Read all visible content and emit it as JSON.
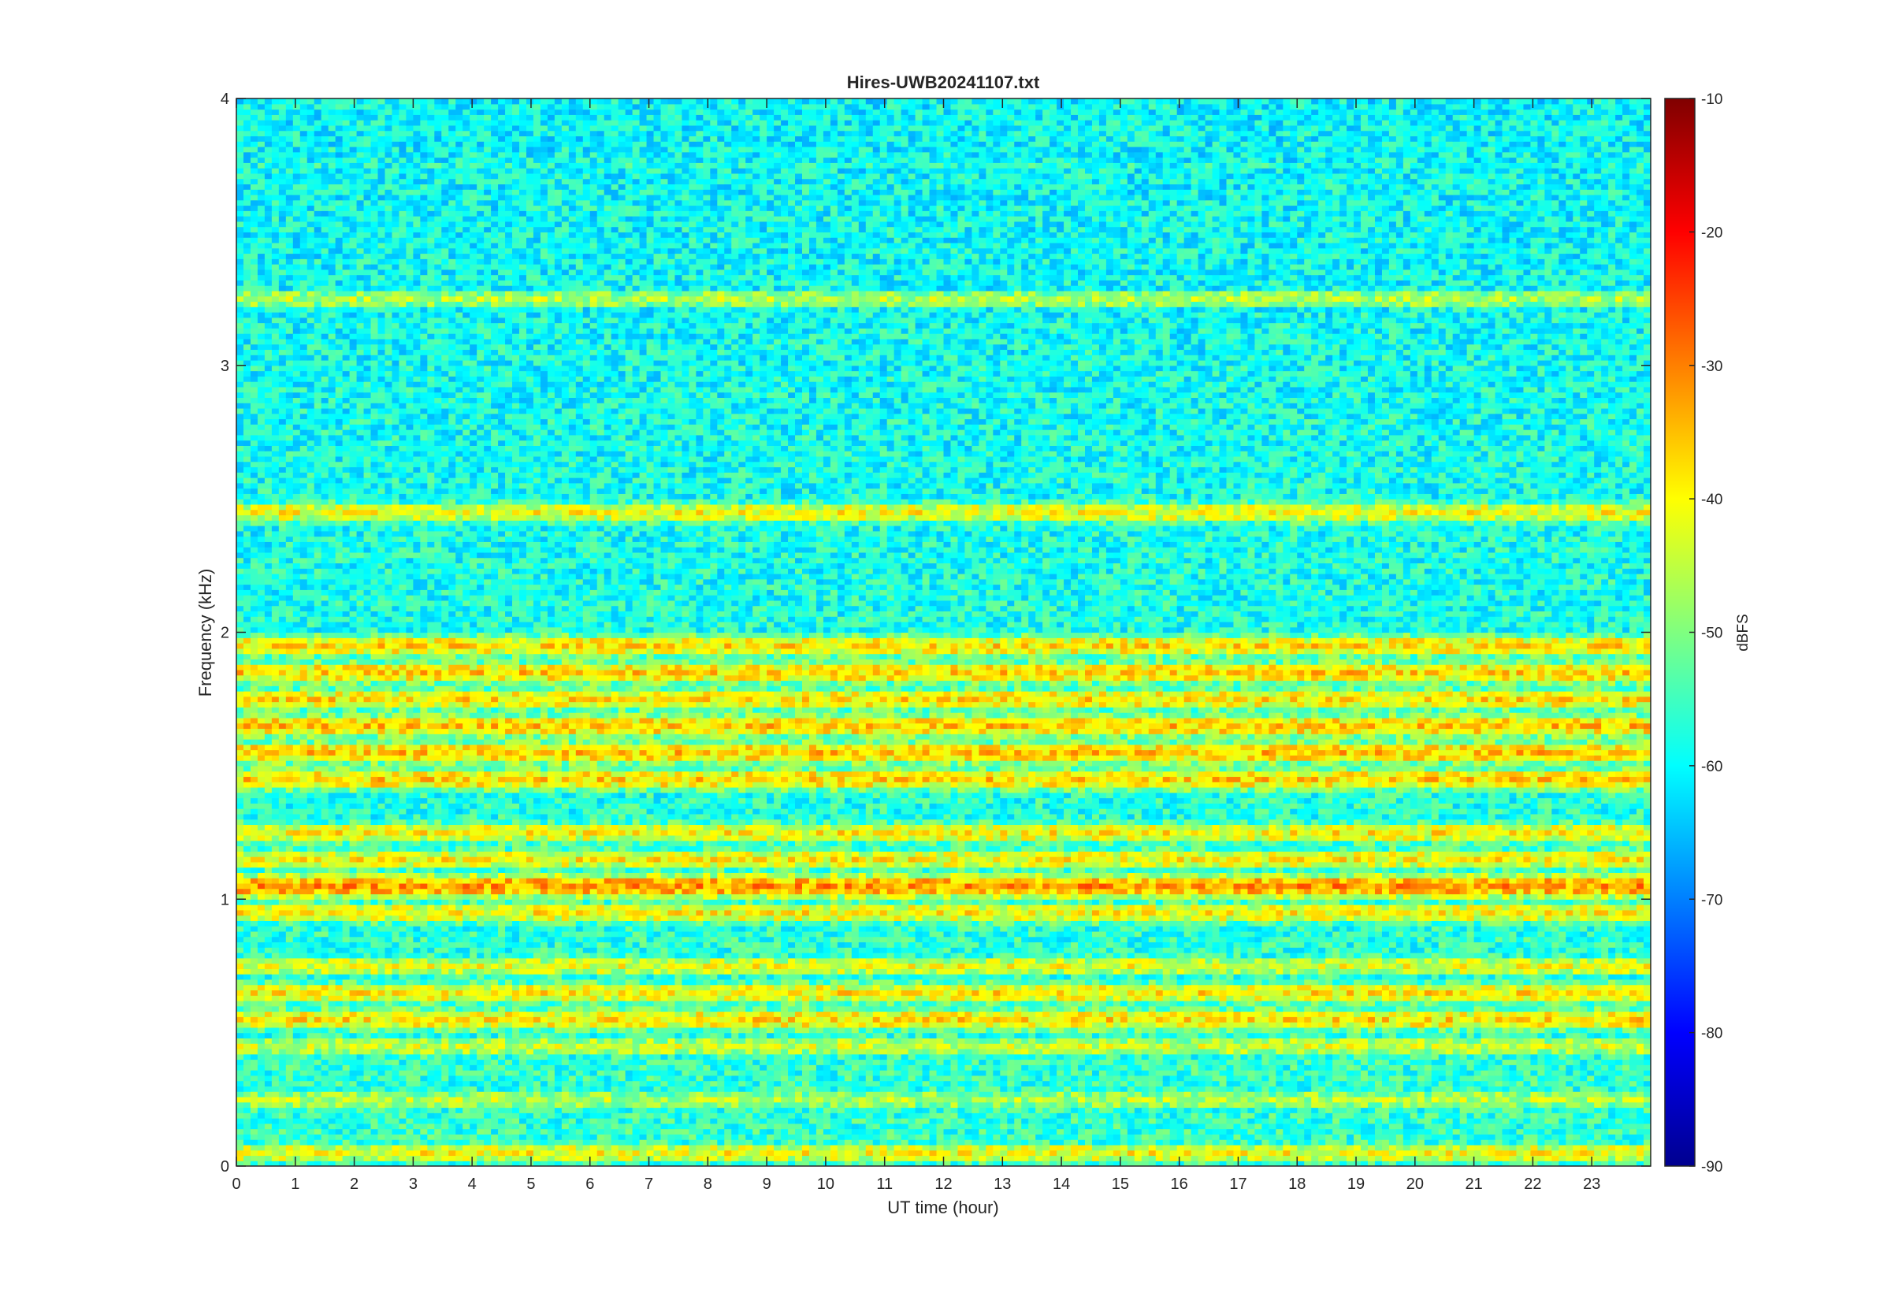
{
  "chart_data": {
    "type": "heatmap",
    "title": "Hires-UWB20241107.txt",
    "xlabel": "UT time (hour)",
    "ylabel": "Frequency (kHz)",
    "xlim": [
      0,
      24
    ],
    "ylim": [
      0,
      4
    ],
    "x_ticks": [
      0,
      1,
      2,
      3,
      4,
      5,
      6,
      7,
      8,
      9,
      10,
      11,
      12,
      13,
      14,
      15,
      16,
      17,
      18,
      19,
      20,
      21,
      22,
      23
    ],
    "y_ticks": [
      0,
      1,
      2,
      3,
      4
    ],
    "colorbar": {
      "label": "dBFS",
      "colormap": "jet",
      "range": [
        -90,
        -10
      ],
      "ticks": [
        -90,
        -80,
        -70,
        -60,
        -50,
        -40,
        -30,
        -20,
        -10
      ]
    },
    "approx_band_levels": [
      {
        "freq_khz": 0.05,
        "dbfs": -45
      },
      {
        "freq_khz": 0.25,
        "dbfs": -50
      },
      {
        "freq_khz": 0.45,
        "dbfs": -48
      },
      {
        "freq_khz": 0.55,
        "dbfs": -42
      },
      {
        "freq_khz": 0.65,
        "dbfs": -43
      },
      {
        "freq_khz": 0.75,
        "dbfs": -46
      },
      {
        "freq_khz": 0.95,
        "dbfs": -44
      },
      {
        "freq_khz": 1.05,
        "dbfs": -36
      },
      {
        "freq_khz": 1.15,
        "dbfs": -44
      },
      {
        "freq_khz": 1.25,
        "dbfs": -44
      },
      {
        "freq_khz": 1.45,
        "dbfs": -41
      },
      {
        "freq_khz": 1.55,
        "dbfs": -40
      },
      {
        "freq_khz": 1.65,
        "dbfs": -40
      },
      {
        "freq_khz": 1.75,
        "dbfs": -42
      },
      {
        "freq_khz": 1.85,
        "dbfs": -41
      },
      {
        "freq_khz": 1.95,
        "dbfs": -42
      },
      {
        "freq_khz": 2.45,
        "dbfs": -45
      },
      {
        "freq_khz": 3.25,
        "dbfs": -50
      },
      {
        "freq_khz": 3.75,
        "dbfs": -62
      }
    ],
    "grid": false
  }
}
